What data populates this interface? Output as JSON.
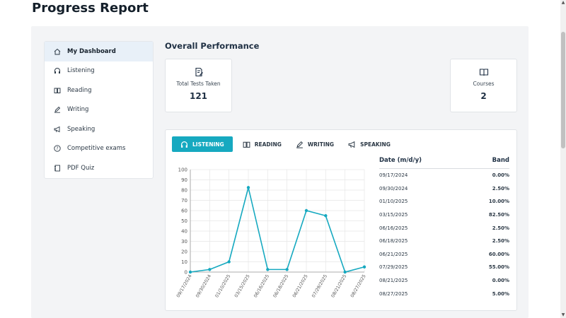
{
  "page": {
    "title": "Progress Report"
  },
  "sidebar": {
    "items": [
      {
        "label": "My Dashboard",
        "icon": "home-icon",
        "active": true
      },
      {
        "label": "Listening",
        "icon": "headphones-icon",
        "active": false
      },
      {
        "label": "Reading",
        "icon": "book-icon",
        "active": false
      },
      {
        "label": "Writing",
        "icon": "pen-icon",
        "active": false
      },
      {
        "label": "Speaking",
        "icon": "megaphone-icon",
        "active": false
      },
      {
        "label": "Competitive exams",
        "icon": "question-icon",
        "active": false
      },
      {
        "label": "PDF Quiz",
        "icon": "notebook-icon",
        "active": false
      }
    ]
  },
  "overall": {
    "title": "Overall Performance",
    "cards": [
      {
        "label": "Total Tests Taken",
        "value": "121",
        "icon": "document-edit-icon"
      },
      {
        "label": "Courses",
        "value": "2",
        "icon": "open-book-icon"
      }
    ]
  },
  "tabs": [
    {
      "label": "LISTENING",
      "icon": "headphones-icon",
      "active": true
    },
    {
      "label": "READING",
      "icon": "book-icon",
      "active": false
    },
    {
      "label": "WRITING",
      "icon": "pen-icon",
      "active": false
    },
    {
      "label": "SPEAKING",
      "icon": "megaphone-icon",
      "active": false
    }
  ],
  "table": {
    "headers": {
      "date": "Date (m/d/y)",
      "band": "Band"
    },
    "rows": [
      {
        "date": "09/17/2024",
        "band": "0.00%"
      },
      {
        "date": "09/30/2024",
        "band": "2.50%"
      },
      {
        "date": "01/10/2025",
        "band": "10.00%"
      },
      {
        "date": "03/15/2025",
        "band": "82.50%"
      },
      {
        "date": "06/16/2025",
        "band": "2.50%"
      },
      {
        "date": "06/18/2025",
        "band": "2.50%"
      },
      {
        "date": "06/21/2025",
        "band": "60.00%"
      },
      {
        "date": "07/29/2025",
        "band": "55.00%"
      },
      {
        "date": "08/21/2025",
        "band": "0.00%"
      },
      {
        "date": "08/27/2025",
        "band": "5.00%"
      }
    ]
  },
  "colors": {
    "accent": "#16a9c0"
  },
  "chart_data": {
    "type": "line",
    "x": [
      "09/17/2024",
      "09/30/2024",
      "01/10/2025",
      "03/15/2025",
      "06/16/2025",
      "06/18/2025",
      "06/21/2025",
      "07/29/2025",
      "08/21/2025",
      "08/27/2025"
    ],
    "series": [
      {
        "values": [
          0,
          2.5,
          10,
          82.5,
          2.5,
          2.5,
          60,
          55,
          0,
          5
        ]
      }
    ],
    "ylim": [
      0,
      100
    ],
    "yticks": [
      0,
      10,
      20,
      30,
      40,
      50,
      60,
      70,
      80,
      90,
      100
    ],
    "grid": true
  }
}
